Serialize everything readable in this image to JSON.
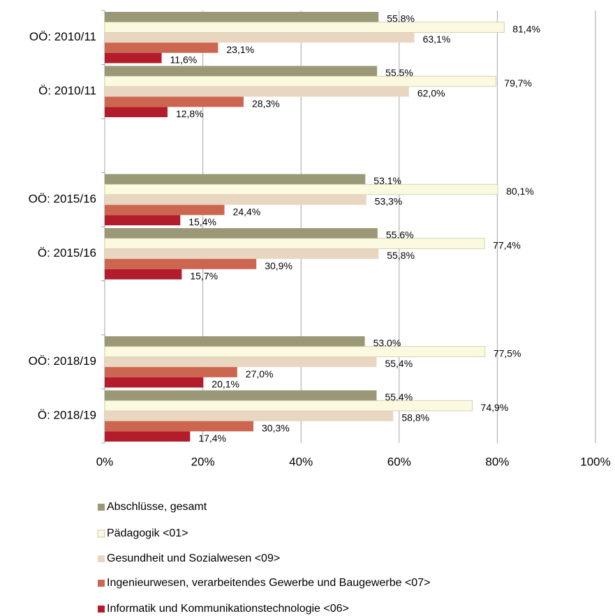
{
  "chart_data": {
    "type": "bar",
    "orientation": "horizontal",
    "categories": [
      "OÖ: 2010/11",
      "Ö: 2010/11",
      null,
      "OÖ: 2015/16",
      "Ö: 2015/16",
      null,
      "OÖ: 2018/19",
      "Ö: 2018/19"
    ],
    "series": [
      {
        "name": "Abschlüsse, gesamt",
        "color": "#9b9878",
        "values": [
          55.8,
          55.5,
          null,
          53.1,
          55.6,
          null,
          53.0,
          55.4
        ],
        "value_labels": [
          "55,8%",
          "55,5%",
          null,
          "53,1%",
          "55,6%",
          null,
          "53,0%",
          "55,4%"
        ]
      },
      {
        "name": "Pädagogik <01>",
        "color": "#fbfae0",
        "values": [
          81.4,
          79.7,
          null,
          80.1,
          77.4,
          null,
          77.5,
          74.9
        ],
        "value_labels": [
          "81,4%",
          "79,7%",
          null,
          "80,1%",
          "77,4%",
          null,
          "77,5%",
          "74,9%"
        ]
      },
      {
        "name": "Gesundheit und Sozialwesen <09>",
        "color": "#e8d6c0",
        "values": [
          63.1,
          62.0,
          null,
          53.3,
          55.8,
          null,
          55.4,
          58.8
        ],
        "value_labels": [
          "63,1%",
          "62,0%",
          null,
          "53,3%",
          "55,8%",
          null,
          "55,4%",
          "58,8%"
        ]
      },
      {
        "name": "Ingenieurwesen, verarbeitendes Gewerbe und Baugewerbe <07>",
        "color": "#cd6651",
        "values": [
          23.1,
          28.3,
          null,
          24.4,
          30.9,
          null,
          27.0,
          30.3
        ],
        "value_labels": [
          "23,1%",
          "28,3%",
          null,
          "24,4%",
          "30,9%",
          null,
          "27,0%",
          "30,3%"
        ]
      },
      {
        "name": "Informatik und Kommunikationstechnologie <06>",
        "color": "#b31c2b",
        "values": [
          11.6,
          12.8,
          null,
          15.4,
          15.7,
          null,
          20.1,
          17.4
        ],
        "value_labels": [
          "11,6%",
          "12,8%",
          null,
          "15,4%",
          "15,7%",
          null,
          "20,1%",
          "17,4%"
        ]
      }
    ],
    "xlim": [
      0,
      100
    ],
    "xticks": [
      {
        "value": 0,
        "label": "0%"
      },
      {
        "value": 20,
        "label": "20%"
      },
      {
        "value": 40,
        "label": "40%"
      },
      {
        "value": 60,
        "label": "60%"
      },
      {
        "value": 80,
        "label": "80%"
      },
      {
        "value": 100,
        "label": "100%"
      }
    ],
    "grid": true,
    "legend": "bottom"
  }
}
